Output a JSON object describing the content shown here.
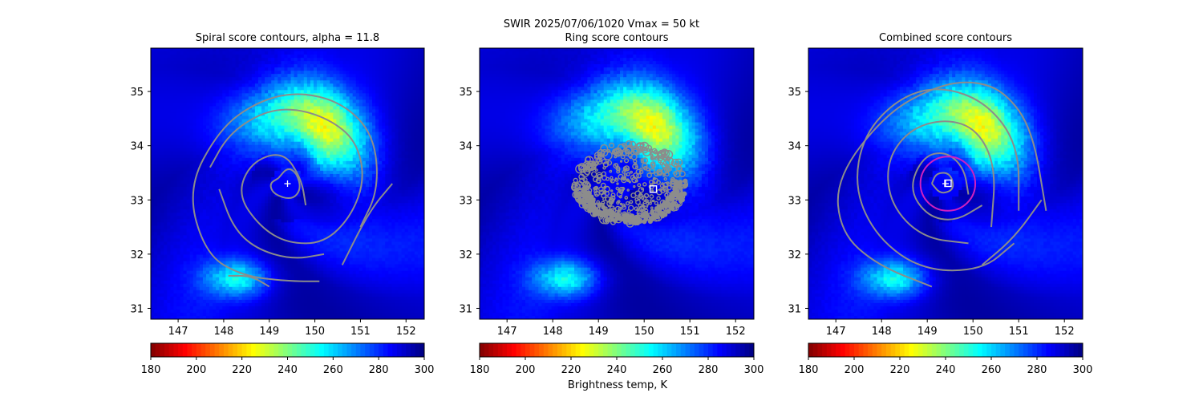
{
  "figure": {
    "suptitle_line1": "SWIR  2025/07/06/1020    Vmax = 50 kt",
    "colorbar_label": "Brightness temp, K"
  },
  "chart_data": [
    {
      "type": "heatmap",
      "title": "Spiral score contours, alpha = 11.8",
      "xlim": [
        146.4,
        152.4
      ],
      "ylim": [
        30.8,
        35.8
      ],
      "xticks": [
        147,
        148,
        149,
        150,
        151,
        152
      ],
      "yticks": [
        31,
        32,
        33,
        34,
        35
      ],
      "colorbar": {
        "range": [
          180,
          300
        ],
        "ticks": [
          180,
          200,
          220,
          240,
          260,
          280,
          300
        ],
        "colormap": "jet_r"
      },
      "storm_center": {
        "lon": 149.4,
        "lat": 33.3
      },
      "contours": [
        [
          [
            149.2,
            33.4
          ],
          [
            149.4,
            33.6
          ],
          [
            149.6,
            33.5
          ],
          [
            149.7,
            33.2
          ],
          [
            149.5,
            33.0
          ],
          [
            149.1,
            33.1
          ],
          [
            149.0,
            33.3
          ],
          [
            149.2,
            33.4
          ]
        ],
        [
          [
            149.8,
            32.9
          ],
          [
            149.7,
            33.4
          ],
          [
            149.3,
            33.9
          ],
          [
            148.6,
            33.7
          ],
          [
            148.3,
            33.1
          ],
          [
            148.8,
            32.5
          ],
          [
            149.4,
            32.2
          ],
          [
            150.2,
            32.2
          ],
          [
            150.8,
            32.7
          ],
          [
            151.1,
            33.4
          ],
          [
            150.9,
            34.1
          ],
          [
            150.3,
            34.5
          ],
          [
            149.5,
            34.7
          ],
          [
            148.8,
            34.6
          ],
          [
            148.1,
            34.2
          ],
          [
            147.7,
            33.6
          ]
        ],
        [
          [
            151.0,
            32.5
          ],
          [
            151.4,
            33.2
          ],
          [
            151.3,
            34.2
          ],
          [
            150.6,
            34.8
          ],
          [
            149.6,
            35.0
          ],
          [
            148.7,
            34.8
          ],
          [
            147.9,
            34.3
          ],
          [
            147.2,
            33.2
          ],
          [
            147.6,
            32.0
          ],
          [
            148.4,
            31.6
          ],
          [
            149.4,
            31.5
          ],
          [
            150.1,
            31.5
          ]
        ],
        [
          [
            150.6,
            31.8
          ],
          [
            151.2,
            32.8
          ],
          [
            151.7,
            33.3
          ]
        ],
        [
          [
            147.9,
            33.2
          ],
          [
            148.2,
            32.5
          ],
          [
            148.7,
            32.1
          ],
          [
            149.5,
            31.9
          ],
          [
            150.2,
            32.0
          ]
        ],
        [
          [
            148.1,
            31.6
          ],
          [
            148.6,
            31.6
          ],
          [
            149.0,
            31.4
          ]
        ]
      ]
    },
    {
      "type": "heatmap",
      "title": "Ring score contours",
      "xlim": [
        146.4,
        152.4
      ],
      "ylim": [
        30.8,
        35.8
      ],
      "xticks": [
        147,
        148,
        149,
        150,
        151,
        152
      ],
      "yticks": [
        31,
        32,
        33,
        34,
        35
      ],
      "colorbar": {
        "range": [
          180,
          300
        ],
        "ticks": [
          180,
          200,
          220,
          240,
          260,
          280,
          300
        ],
        "colormap": "jet_r"
      },
      "ring_center": {
        "lon": 150.2,
        "lat": 33.2
      },
      "contour_region": {
        "center_lon": 149.7,
        "center_lat": 33.3,
        "radius_lon": 1.25,
        "radius_lat": 0.75
      }
    },
    {
      "type": "heatmap",
      "title": "Combined score contours",
      "xlim": [
        146.4,
        152.4
      ],
      "ylim": [
        30.8,
        35.8
      ],
      "xticks": [
        147,
        148,
        149,
        150,
        151,
        152
      ],
      "yticks": [
        31,
        32,
        33,
        34,
        35
      ],
      "colorbar": {
        "range": [
          180,
          300
        ],
        "ticks": [
          180,
          200,
          220,
          240,
          260,
          280,
          300
        ],
        "colormap": "jet_r"
      },
      "storm_center": {
        "lon": 149.4,
        "lat": 33.3
      },
      "center_circle": {
        "lon": 149.45,
        "lat": 33.3,
        "radius_lon": 0.6,
        "radius_lat": 0.5,
        "color": "#d020c0"
      },
      "contours": [
        [
          [
            149.1,
            33.3
          ],
          [
            149.2,
            33.5
          ],
          [
            149.5,
            33.5
          ],
          [
            149.6,
            33.2
          ],
          [
            149.3,
            33.1
          ],
          [
            149.1,
            33.3
          ]
        ],
        [
          [
            149.9,
            33.1
          ],
          [
            149.8,
            33.6
          ],
          [
            149.4,
            33.9
          ],
          [
            148.9,
            33.8
          ],
          [
            148.6,
            33.2
          ],
          [
            149.0,
            32.7
          ],
          [
            149.6,
            32.6
          ],
          [
            150.2,
            32.9
          ]
        ],
        [
          [
            150.4,
            32.5
          ],
          [
            150.5,
            33.6
          ],
          [
            150.1,
            34.3
          ],
          [
            149.4,
            34.5
          ],
          [
            148.6,
            34.3
          ],
          [
            148.1,
            33.7
          ],
          [
            148.2,
            32.9
          ],
          [
            148.9,
            32.3
          ],
          [
            149.9,
            32.2
          ]
        ],
        [
          [
            151.0,
            32.8
          ],
          [
            151.0,
            34.0
          ],
          [
            150.3,
            34.8
          ],
          [
            149.3,
            35.1
          ],
          [
            148.4,
            34.9
          ],
          [
            147.6,
            34.2
          ],
          [
            147.4,
            33.2
          ],
          [
            147.9,
            32.3
          ],
          [
            148.9,
            31.7
          ],
          [
            150.2,
            31.7
          ],
          [
            150.9,
            32.2
          ]
        ],
        [
          [
            151.6,
            32.8
          ],
          [
            151.3,
            34.3
          ],
          [
            150.7,
            35.0
          ],
          [
            150.0,
            35.2
          ],
          [
            149.2,
            35.1
          ],
          [
            148.1,
            34.6
          ],
          [
            147.0,
            33.4
          ],
          [
            147.1,
            32.4
          ],
          [
            147.9,
            31.8
          ],
          [
            149.1,
            31.4
          ]
        ],
        [
          [
            150.2,
            31.8
          ],
          [
            150.9,
            32.3
          ],
          [
            151.5,
            33.0
          ]
        ]
      ]
    }
  ]
}
